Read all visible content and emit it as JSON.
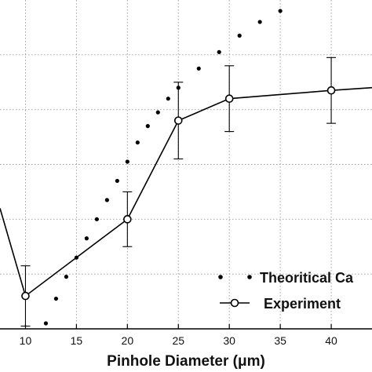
{
  "chart_data": {
    "type": "line",
    "xlabel": "Pinhole Diameter (μm)",
    "ylabel": "",
    "title": "",
    "xlim": [
      7.5,
      44
    ],
    "ylim": [
      0,
      1.2
    ],
    "x_ticks": [
      10,
      15,
      20,
      25,
      30,
      35,
      40
    ],
    "x_tick_labels": [
      "10",
      "15",
      "20",
      "25",
      "30",
      "35",
      "40"
    ],
    "grid": true,
    "legend_position": "bottom-right",
    "series": [
      {
        "name": "Theoritical Ca",
        "style": "dotted",
        "x": [
          12,
          13,
          14,
          15,
          16,
          17,
          18,
          19,
          20,
          21,
          22,
          23,
          24,
          25,
          27,
          29,
          31,
          33,
          35
        ],
        "y": [
          0.02,
          0.11,
          0.19,
          0.26,
          0.33,
          0.4,
          0.47,
          0.54,
          0.61,
          0.68,
          0.74,
          0.79,
          0.84,
          0.88,
          0.95,
          1.01,
          1.07,
          1.12,
          1.16
        ]
      },
      {
        "name": "Experiment",
        "style": "line-circle",
        "x": [
          7.5,
          10,
          20,
          25,
          30,
          40,
          44
        ],
        "y": [
          0.44,
          0.12,
          0.4,
          0.76,
          0.84,
          0.87,
          0.88
        ],
        "error": [
          null,
          0.11,
          0.1,
          0.14,
          0.12,
          0.12,
          null
        ]
      }
    ]
  },
  "legend": {
    "theoretical_label": "Theoritical Ca",
    "experiment_label": "Experiment"
  },
  "colors": {
    "line": "#000000",
    "grid": "#9a9a9a",
    "background": "#ffffff"
  }
}
